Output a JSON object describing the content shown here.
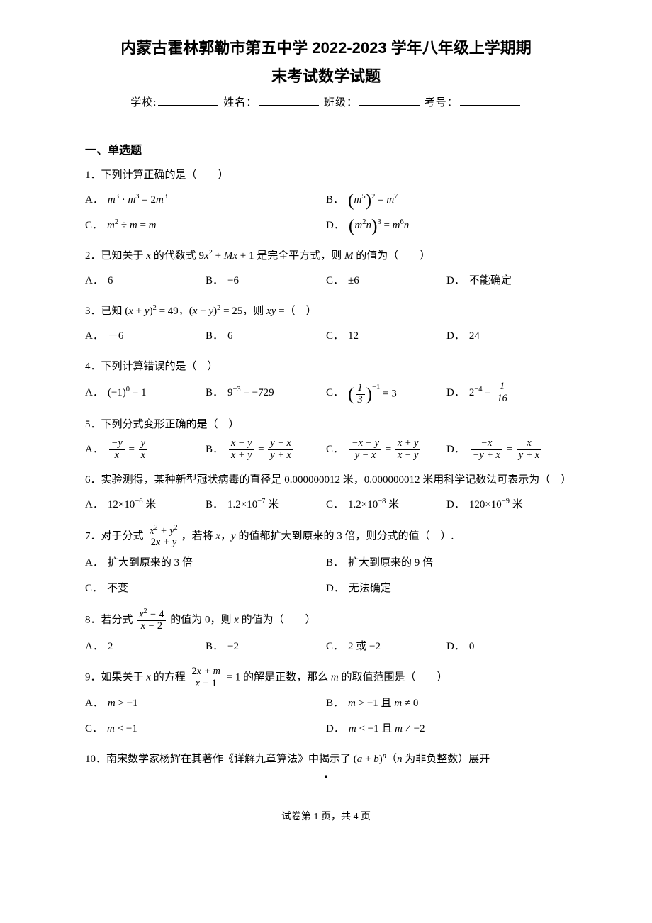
{
  "title_l1": "内蒙古霍林郭勒市第五中学 2022-2023 学年八年级上学期期",
  "title_l2": "末考试数学试题",
  "meta": {
    "school": "学校:",
    "name": "姓名：",
    "class": "班级：",
    "examno": "考号："
  },
  "section_heading": "一、单选题",
  "footer": "试卷第 1 页，共 4 页",
  "questions": [
    {
      "num": "1",
      "stem_html": "下列计算正确的是（　　）",
      "cols": 2,
      "options": [
        "<span class='ital'>m</span><span class='sup'>3</span> · <span class='ital'>m</span><span class='sup'>3</span> = 2<span class='ital'>m</span><span class='sup'>3</span>",
        "<span class='paren-big'>(</span><span class='ital'>m</span><span class='sup'>5</span><span class='paren-big'>)</span><span class='sup'>2</span> = <span class='ital'>m</span><span class='sup'>7</span>",
        "<span class='ital'>m</span><span class='sup'>2</span> ÷ <span class='ital'>m</span> = <span class='ital'>m</span>",
        "<span class='paren-big'>(</span><span class='ital'>m</span><span class='sup'>2</span><span class='ital'>n</span><span class='paren-big'>)</span><span class='sup'>3</span> = <span class='ital'>m</span><span class='sup'>6</span><span class='ital'>n</span>"
      ]
    },
    {
      "num": "2",
      "stem_html": "已知关于 <span class='ital'>x</span> 的代数式 9<span class='ital'>x</span><span class='sup'>2</span> + <span class='ital'>Mx</span> + 1 是完全平方式，则 <span class='ital'>M</span> 的值为（　　）",
      "cols": 4,
      "options": [
        "6",
        "−6",
        "±6",
        "不能确定"
      ]
    },
    {
      "num": "3",
      "stem_html": "已知 (<span class='ital'>x</span> + <span class='ital'>y</span>)<span class='sup'>2</span> = 49，(<span class='ital'>x</span> − <span class='ital'>y</span>)<span class='sup'>2</span> = 25，则 <span class='ital'>xy</span> =（　）",
      "cols": 4,
      "options": [
        "－6",
        "6",
        "12",
        "24"
      ]
    },
    {
      "num": "4",
      "stem_html": "下列计算错误的是（　）",
      "cols": 4,
      "options": [
        "(−1)<span class='sup'>0</span> = 1",
        "9<span class='sup'>−3</span> = −729",
        "<span class='paren-big'>(</span><span class='frac'><span class='num'>1</span><span class='den'>3</span></span><span class='paren-big'>)</span><span class='sup' style='vertical-align:1em;'>−1</span> = 3",
        "2<span class='sup'>−4</span> = <span class='frac'><span class='num'>1</span><span class='den'>16</span></span>"
      ]
    },
    {
      "num": "5",
      "stem_html": "下列分式变形正确的是（　）",
      "cols": 4,
      "options": [
        "<span class='frac'><span class='num'>−y</span><span class='den'>x</span></span> = <span class='frac'><span class='num'>y</span><span class='den'>x</span></span>",
        "<span class='frac'><span class='num'>x − y</span><span class='den'>x + y</span></span> = <span class='frac'><span class='num'>y − x</span><span class='den'>y + x</span></span>",
        "<span class='frac'><span class='num'>−x − y</span><span class='den'>y − x</span></span> = <span class='frac'><span class='num'>x + y</span><span class='den'>x − y</span></span>",
        "<span class='frac'><span class='num'>−x</span><span class='den'>−y + x</span></span> = <span class='frac'><span class='num'>x</span><span class='den'>y + x</span></span>"
      ]
    },
    {
      "num": "6",
      "stem_html": "实验测得，某种新型冠状病毒的直径是 0.000000012 米，0.000000012 米用科学记数法可表示为（　）",
      "cols": 4,
      "options": [
        "12×10<span class='sup'>−6</span> 米",
        "1.2×10<span class='sup'>−7</span> 米",
        "1.2×10<span class='sup'>−8</span> 米",
        "120×10<span class='sup'>−9</span> 米"
      ]
    },
    {
      "num": "7",
      "stem_html": "对于分式 <span class='frac'><span class='num'>x<span class='sup upright'>2</span> + y<span class='sup upright'>2</span></span><span class='den'><span class='upright'>2</span>x + y</span></span>，若将 <span class='ital'>x</span>，<span class='ital'>y</span> 的值都扩大到原来的 3 倍，则分式的值（　）.",
      "cols": 2,
      "options": [
        "扩大到原来的 3 倍",
        "扩大到原来的 9 倍",
        "不变",
        "无法确定"
      ]
    },
    {
      "num": "8",
      "stem_html": "若分式 <span class='frac'><span class='num'>x<span class='sup upright'>2</span> − <span class='upright'>4</span></span><span class='den'>x − <span class='upright'>2</span></span></span> 的值为 0，则 <span class='ital'>x</span> 的值为（　　）",
      "cols": 4,
      "options": [
        "2",
        "−2",
        "2 或 −2",
        "0"
      ]
    },
    {
      "num": "9",
      "stem_html": "如果关于 <span class='ital'>x</span> 的方程 <span class='frac'><span class='num'><span class='upright'>2</span>x + m</span><span class='den'>x − <span class='upright'>1</span></span></span> = 1 的解是正数，那么 <span class='ital'>m</span> 的取值范围是（　　）",
      "cols": 2,
      "options": [
        "<span class='ital'>m</span> &gt; −1",
        "<span class='ital'>m</span> &gt; −1 且 <span class='ital'>m</span> ≠ 0",
        "<span class='ital'>m</span> &lt; −1",
        "<span class='ital'>m</span> &lt; −1 且 <span class='ital'>m</span> ≠ −2"
      ]
    },
    {
      "num": "10",
      "stem_html": "南宋数学家杨辉在其著作《详解九章算法》中揭示了 (<span class='ital'>a</span> + <span class='ital'>b</span>)<span class='sup ital'>n</span>（<span class='ital'>n</span> 为非负整数）展开",
      "cols": 0,
      "options": []
    }
  ],
  "option_labels": [
    "A．",
    "B．",
    "C．",
    "D．"
  ]
}
